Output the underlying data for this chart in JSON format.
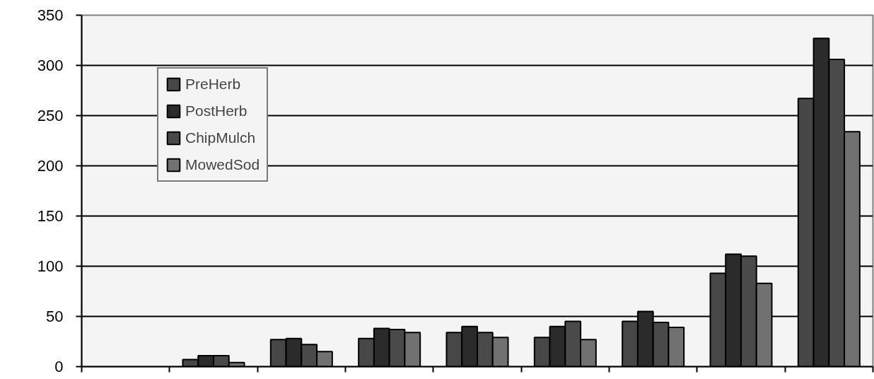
{
  "chart_data": {
    "type": "bar",
    "categories": [
      null,
      null,
      null,
      null,
      null,
      null,
      null,
      null,
      null
    ],
    "series": [
      {
        "name": "PreHerb",
        "color": "#474747",
        "values": [
          null,
          7,
          27,
          28,
          34,
          29,
          45,
          93,
          267
        ]
      },
      {
        "name": "PostHerb",
        "color": "#2b2b2b",
        "values": [
          null,
          11,
          28,
          38,
          40,
          40,
          55,
          112,
          327
        ]
      },
      {
        "name": "ChipMulch",
        "color": "#4a4a4a",
        "values": [
          null,
          11,
          22,
          37,
          34,
          45,
          44,
          110,
          306
        ]
      },
      {
        "name": "MowedSod",
        "color": "#717171",
        "values": [
          null,
          4,
          15,
          34,
          29,
          27,
          39,
          83,
          234
        ]
      }
    ],
    "ylim": [
      0,
      350
    ],
    "yticks": [
      0,
      50,
      100,
      150,
      200,
      250,
      300,
      350
    ],
    "grid": "y",
    "legend": "top left",
    "tick_labels": "y"
  }
}
